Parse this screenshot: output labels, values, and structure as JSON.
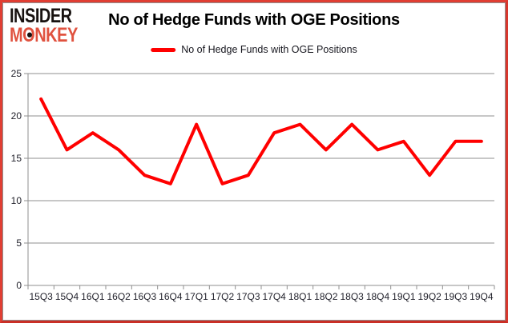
{
  "logo": {
    "line1": "INSIDER",
    "line2": "MONKEY"
  },
  "title": "No of Hedge Funds with OGE Positions",
  "legend": {
    "label": "No of Hedge Funds with OGE Positions"
  },
  "colors": {
    "series": "#ff0000",
    "grid": "#8f8f8f",
    "axis": "#8f8f8f",
    "tick_text": "#21212b",
    "outer_border": "#e03e33",
    "inner_frame": "#919191",
    "logo_accent": "#e0523f",
    "logo_main": "#181210"
  },
  "chart_data": {
    "type": "line",
    "title": "No of Hedge Funds with OGE Positions",
    "categories": [
      "15Q3",
      "15Q4",
      "16Q1",
      "16Q2",
      "16Q3",
      "16Q4",
      "17Q1",
      "17Q2",
      "17Q3",
      "17Q4",
      "18Q1",
      "18Q2",
      "18Q3",
      "18Q4",
      "19Q1",
      "19Q2",
      "19Q3",
      "19Q4"
    ],
    "series": [
      {
        "name": "No of Hedge Funds with OGE Positions",
        "color": "#ff0000",
        "values": [
          22,
          16,
          18,
          16,
          13,
          12,
          19,
          12,
          13,
          18,
          19,
          16,
          19,
          16,
          17,
          13,
          17,
          17
        ]
      }
    ],
    "xlabel": "",
    "ylabel": "",
    "ylim": [
      0,
      25
    ],
    "yticks": [
      0,
      5,
      10,
      15,
      20,
      25
    ],
    "grid": true,
    "legend_position": "top-center"
  }
}
